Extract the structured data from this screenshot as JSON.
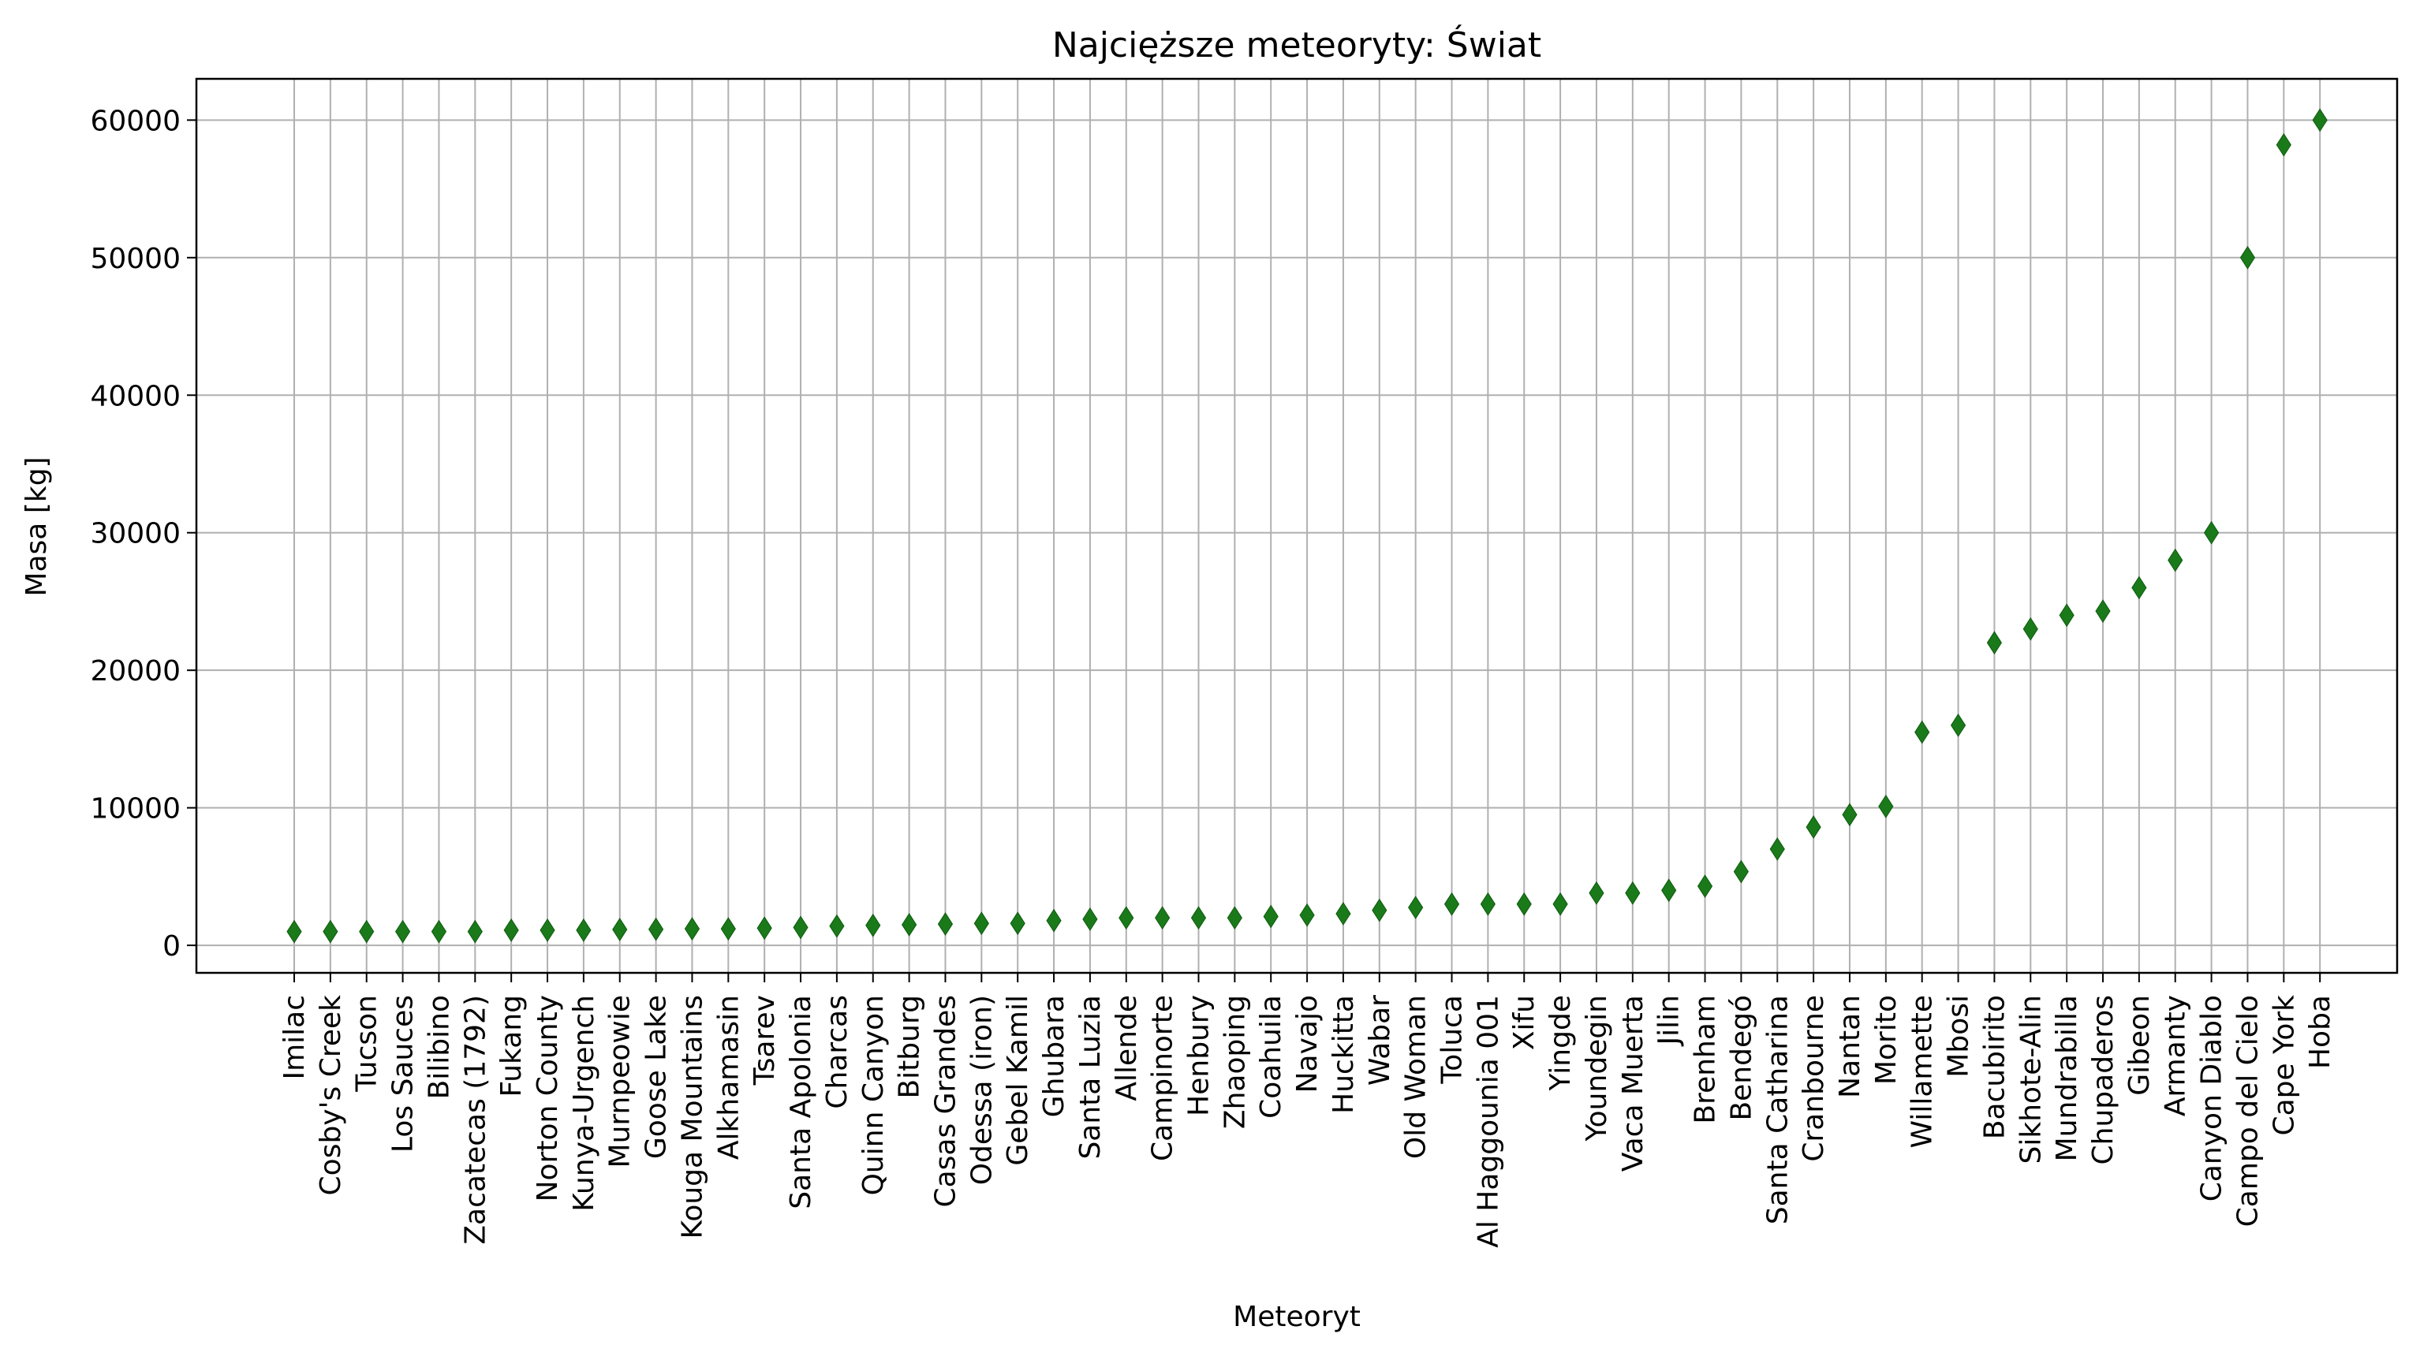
{
  "chart_data": {
    "type": "scatter",
    "title": "Najcięższe meteoryty: Świat",
    "xlabel": "Meteoryt",
    "ylabel": "Masa [kg]",
    "ylim": [
      -2000,
      63000
    ],
    "yticks": [
      0,
      10000,
      20000,
      30000,
      40000,
      50000,
      60000
    ],
    "grid": true,
    "marker": "thin_diamond",
    "marker_color": "#1a7a1a",
    "categories": [
      "Imilac",
      "Cosby's Creek",
      "Tucson",
      "Los Sauces",
      "Bilibino",
      "Zacatecas (1792)",
      "Fukang",
      "Norton County",
      "Kunya-Urgench",
      "Murnpeowie",
      "Goose Lake",
      "Kouga Mountains",
      "Alkhamasin",
      "Tsarev",
      "Santa Apolonia",
      "Charcas",
      "Quinn Canyon",
      "Bitburg",
      "Casas Grandes",
      "Odessa (iron)",
      "Gebel Kamil",
      "Ghubara",
      "Santa Luzia",
      "Allende",
      "Campinorte",
      "Henbury",
      "Zhaoping",
      "Coahuila",
      "Navajo",
      "Huckitta",
      "Wabar",
      "Old Woman",
      "Toluca",
      "Al Haggounia 001",
      "Xifu",
      "Yingde",
      "Youndegin",
      "Vaca Muerta",
      "Jilin",
      "Brenham",
      "Bendegó",
      "Santa Catharina",
      "Cranbourne",
      "Nantan",
      "Morito",
      "Willamette",
      "Mbosi",
      "Bacubirito",
      "Sikhote-Alin",
      "Mundrabilla",
      "Chupaderos",
      "Gibeon",
      "Armanty",
      "Canyon Diablo",
      "Campo del Cielo",
      "Cape York",
      "Hoba"
    ],
    "values": [
      1000,
      1000,
      1000,
      1000,
      1000,
      1000,
      1100,
      1100,
      1100,
      1150,
      1170,
      1200,
      1200,
      1250,
      1300,
      1400,
      1450,
      1500,
      1550,
      1600,
      1600,
      1800,
      1900,
      2000,
      2000,
      2000,
      2000,
      2100,
      2200,
      2300,
      2550,
      2750,
      3000,
      3000,
      3000,
      3000,
      3800,
      3800,
      4000,
      4300,
      5360,
      7000,
      8600,
      9500,
      10100,
      15500,
      16000,
      22000,
      23000,
      24000,
      24300,
      26000,
      28000,
      30000,
      50000,
      58200,
      60000
    ]
  }
}
